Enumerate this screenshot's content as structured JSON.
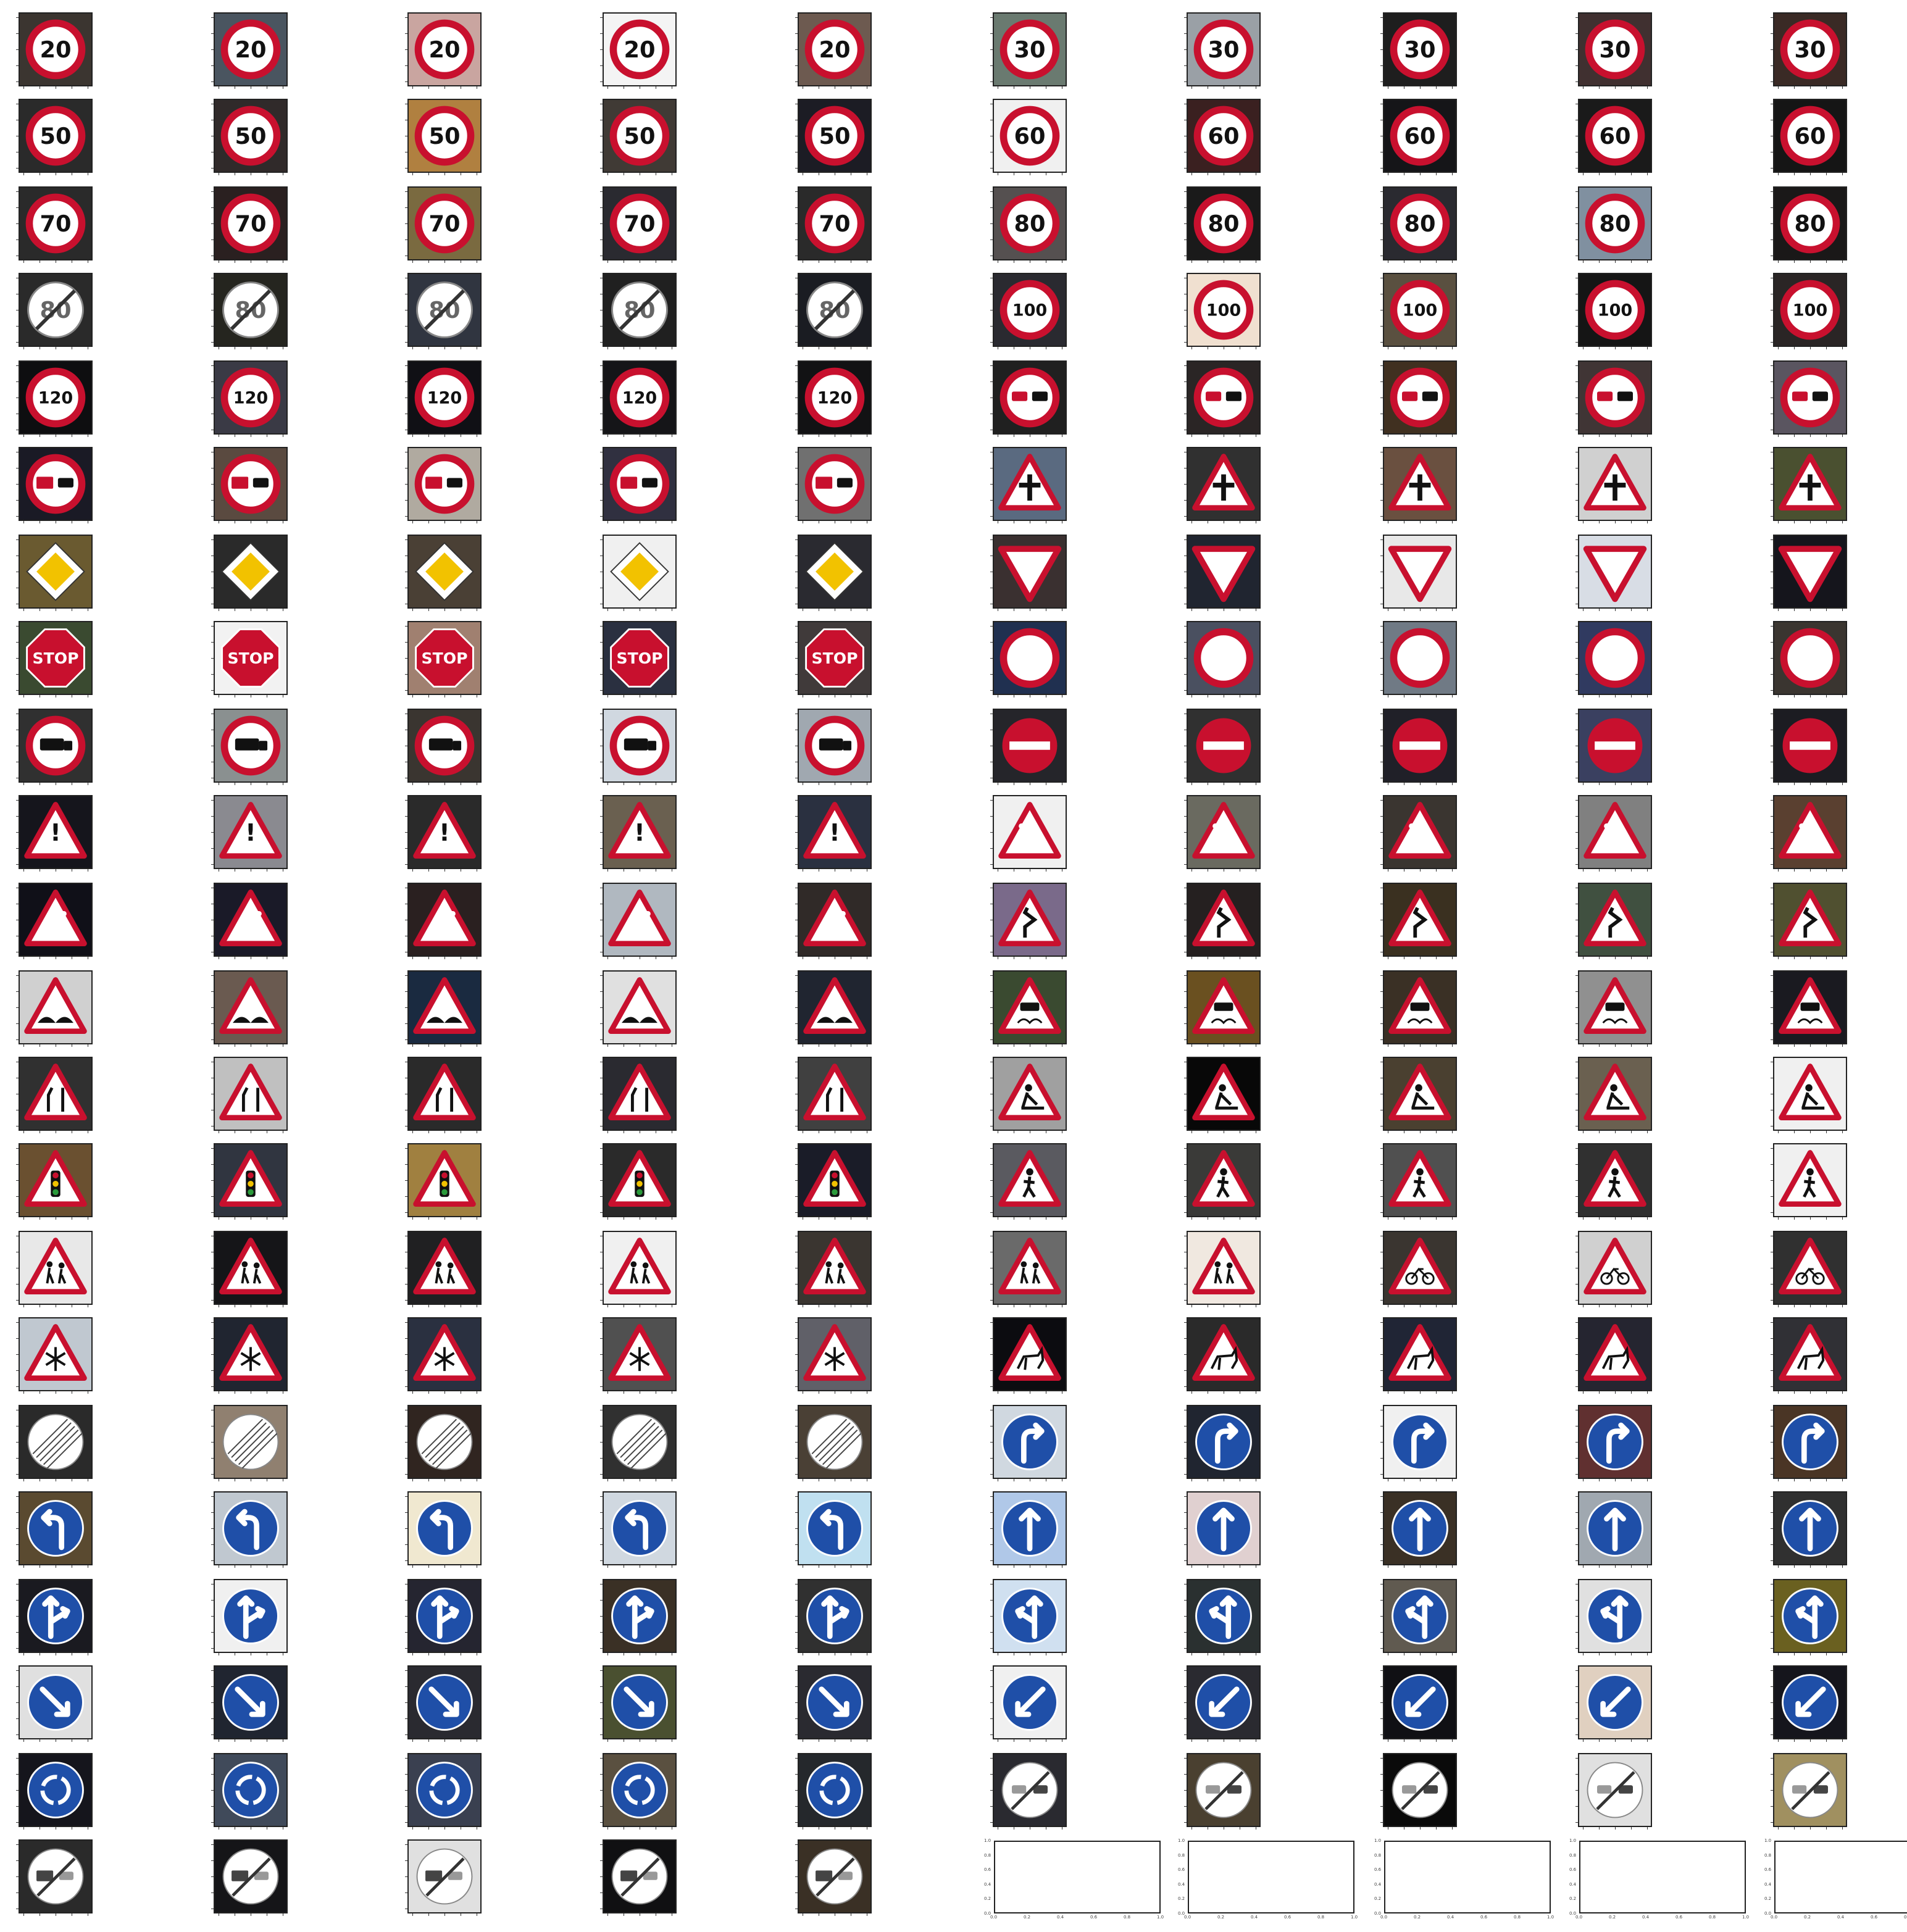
{
  "figure": {
    "background": "#ffffff",
    "rows": 22,
    "cols": 10
  },
  "tiles": [
    {
      "sign": "speed-20",
      "bg": "#3b3530",
      "text": "20"
    },
    {
      "sign": "speed-20",
      "bg": "#4a5560",
      "text": "20"
    },
    {
      "sign": "speed-20",
      "bg": "#c9a5a0",
      "text": "20"
    },
    {
      "sign": "speed-20",
      "bg": "#f4f4f4",
      "text": "20"
    },
    {
      "sign": "speed-20",
      "bg": "#6d5a50",
      "text": "20"
    },
    {
      "sign": "speed-30",
      "bg": "#6a7a70",
      "text": "30"
    },
    {
      "sign": "speed-30",
      "bg": "#9aa0a6",
      "text": "30"
    },
    {
      "sign": "speed-30",
      "bg": "#1e1e1e",
      "text": "30"
    },
    {
      "sign": "speed-30",
      "bg": "#403030",
      "text": "30"
    },
    {
      "sign": "speed-30",
      "bg": "#3a2a25",
      "text": "30"
    },
    {
      "sign": "speed-50",
      "bg": "#2a2a2a",
      "text": "50"
    },
    {
      "sign": "speed-50",
      "bg": "#302a2a",
      "text": "50"
    },
    {
      "sign": "speed-50",
      "bg": "#b08040",
      "text": "50"
    },
    {
      "sign": "speed-50",
      "bg": "#403a35",
      "text": "50"
    },
    {
      "sign": "speed-50",
      "bg": "#1c1c24",
      "text": "50"
    },
    {
      "sign": "speed-60",
      "bg": "#f0f0f0",
      "text": "60"
    },
    {
      "sign": "speed-60",
      "bg": "#3a2020",
      "text": "60"
    },
    {
      "sign": "speed-60",
      "bg": "#151518",
      "text": "60"
    },
    {
      "sign": "speed-60",
      "bg": "#1a1a1a",
      "text": "60"
    },
    {
      "sign": "speed-60",
      "bg": "#151515",
      "text": "60"
    },
    {
      "sign": "speed-70",
      "bg": "#2a2a2a",
      "text": "70"
    },
    {
      "sign": "speed-70",
      "bg": "#2a2020",
      "text": "70"
    },
    {
      "sign": "speed-70",
      "bg": "#7a6a40",
      "text": "70"
    },
    {
      "sign": "speed-70",
      "bg": "#2a2a30",
      "text": "70"
    },
    {
      "sign": "speed-70",
      "bg": "#2a2a2a",
      "text": "70"
    },
    {
      "sign": "speed-80",
      "bg": "#555050",
      "text": "80"
    },
    {
      "sign": "speed-80",
      "bg": "#1a1a1a",
      "text": "80"
    },
    {
      "sign": "speed-80",
      "bg": "#2a2a30",
      "text": "80"
    },
    {
      "sign": "speed-80",
      "bg": "#8090a0",
      "text": "80"
    },
    {
      "sign": "speed-80",
      "bg": "#1a1818",
      "text": "80"
    },
    {
      "sign": "end-80",
      "bg": "#2a2a2a",
      "text": "80"
    },
    {
      "sign": "end-80",
      "bg": "#25251f",
      "text": "80"
    },
    {
      "sign": "end-80",
      "bg": "#303540",
      "text": "80"
    },
    {
      "sign": "end-80",
      "bg": "#202020",
      "text": "80"
    },
    {
      "sign": "end-80",
      "bg": "#1a1c22",
      "text": "80"
    },
    {
      "sign": "speed-100",
      "bg": "#2a2a30",
      "text": "100"
    },
    {
      "sign": "speed-100",
      "bg": "#f0e0d0",
      "text": "100"
    },
    {
      "sign": "speed-100",
      "bg": "#5a5040",
      "text": "100"
    },
    {
      "sign": "speed-100",
      "bg": "#151515",
      "text": "100"
    },
    {
      "sign": "speed-100",
      "bg": "#2a2525",
      "text": "100"
    },
    {
      "sign": "speed-120",
      "bg": "#0e0e10",
      "text": "120"
    },
    {
      "sign": "speed-120",
      "bg": "#3a3a45",
      "text": "120"
    },
    {
      "sign": "speed-120",
      "bg": "#101015",
      "text": "120"
    },
    {
      "sign": "speed-120",
      "bg": "#151518",
      "text": "120"
    },
    {
      "sign": "speed-120",
      "bg": "#121214",
      "text": "120"
    },
    {
      "sign": "no-overtaking",
      "bg": "#202020",
      "text": ""
    },
    {
      "sign": "no-overtaking",
      "bg": "#2a2525",
      "text": ""
    },
    {
      "sign": "no-overtaking",
      "bg": "#403020",
      "text": ""
    },
    {
      "sign": "no-overtaking",
      "bg": "#403535",
      "text": ""
    },
    {
      "sign": "no-overtaking",
      "bg": "#5a5560",
      "text": ""
    },
    {
      "sign": "no-overtaking-truck",
      "bg": "#1a1a25",
      "text": ""
    },
    {
      "sign": "no-overtaking-truck",
      "bg": "#5a4a40",
      "text": ""
    },
    {
      "sign": "no-overtaking-truck",
      "bg": "#b0aaa0",
      "text": ""
    },
    {
      "sign": "no-overtaking-truck",
      "bg": "#303040",
      "text": ""
    },
    {
      "sign": "no-overtaking-truck",
      "bg": "#707070",
      "text": ""
    },
    {
      "sign": "priority-crossing",
      "bg": "#5a6a80",
      "text": ""
    },
    {
      "sign": "priority-crossing",
      "bg": "#303030",
      "text": ""
    },
    {
      "sign": "priority-crossing",
      "bg": "#6a5040",
      "text": ""
    },
    {
      "sign": "priority-crossing",
      "bg": "#d0d0d0",
      "text": ""
    },
    {
      "sign": "priority-crossing",
      "bg": "#4a5030",
      "text": ""
    },
    {
      "sign": "priority-road",
      "bg": "#6a5a30",
      "text": ""
    },
    {
      "sign": "priority-road",
      "bg": "#2a2a2a",
      "text": ""
    },
    {
      "sign": "priority-road",
      "bg": "#4a4035",
      "text": ""
    },
    {
      "sign": "priority-road",
      "bg": "#f0f0f0",
      "text": ""
    },
    {
      "sign": "priority-road",
      "bg": "#2a2a30",
      "text": ""
    },
    {
      "sign": "yield",
      "bg": "#3a3030",
      "text": ""
    },
    {
      "sign": "yield",
      "bg": "#202530",
      "text": ""
    },
    {
      "sign": "yield",
      "bg": "#e8e8e8",
      "text": ""
    },
    {
      "sign": "yield",
      "bg": "#d8dde5",
      "text": ""
    },
    {
      "sign": "yield",
      "bg": "#15151c",
      "text": ""
    },
    {
      "sign": "stop",
      "bg": "#3a4a30",
      "text": "STOP"
    },
    {
      "sign": "stop",
      "bg": "#f2f2f2",
      "text": "STOP"
    },
    {
      "sign": "stop",
      "bg": "#a08070",
      "text": "STOP"
    },
    {
      "sign": "stop",
      "bg": "#2a3040",
      "text": "STOP"
    },
    {
      "sign": "stop",
      "bg": "#403a3a",
      "text": "STOP"
    },
    {
      "sign": "no-vehicles",
      "bg": "#203050",
      "text": ""
    },
    {
      "sign": "no-vehicles",
      "bg": "#4a5060",
      "text": ""
    },
    {
      "sign": "no-vehicles",
      "bg": "#707a85",
      "text": ""
    },
    {
      "sign": "no-vehicles",
      "bg": "#303a60",
      "text": ""
    },
    {
      "sign": "no-vehicles",
      "bg": "#3a3530",
      "text": ""
    },
    {
      "sign": "no-trucks",
      "bg": "#303030",
      "text": ""
    },
    {
      "sign": "no-trucks",
      "bg": "#8a9090",
      "text": ""
    },
    {
      "sign": "no-trucks",
      "bg": "#3a3530",
      "text": ""
    },
    {
      "sign": "no-trucks",
      "bg": "#d0d8e0",
      "text": ""
    },
    {
      "sign": "no-trucks",
      "bg": "#a0a8b0",
      "text": ""
    },
    {
      "sign": "no-entry",
      "bg": "#25252a",
      "text": ""
    },
    {
      "sign": "no-entry",
      "bg": "#303030",
      "text": ""
    },
    {
      "sign": "no-entry",
      "bg": "#202028",
      "text": ""
    },
    {
      "sign": "no-entry",
      "bg": "#3a4060",
      "text": ""
    },
    {
      "sign": "no-entry",
      "bg": "#1c1c22",
      "text": ""
    },
    {
      "sign": "caution",
      "bg": "#15151c",
      "text": "!"
    },
    {
      "sign": "caution",
      "bg": "#8a8a90",
      "text": "!"
    },
    {
      "sign": "caution",
      "bg": "#2a2a2a",
      "text": "!"
    },
    {
      "sign": "caution",
      "bg": "#6a6050",
      "text": "!"
    },
    {
      "sign": "caution",
      "bg": "#2a3040",
      "text": "!"
    },
    {
      "sign": "curve-left",
      "bg": "#f0f0f0",
      "text": ""
    },
    {
      "sign": "curve-left",
      "bg": "#6a6a60",
      "text": ""
    },
    {
      "sign": "curve-left",
      "bg": "#3a3530",
      "text": ""
    },
    {
      "sign": "curve-left",
      "bg": "#808080",
      "text": ""
    },
    {
      "sign": "curve-left",
      "bg": "#5a4030",
      "text": ""
    },
    {
      "sign": "curve-right",
      "bg": "#101018",
      "text": ""
    },
    {
      "sign": "curve-right",
      "bg": "#1a1a28",
      "text": ""
    },
    {
      "sign": "curve-right",
      "bg": "#2a2020",
      "text": ""
    },
    {
      "sign": "curve-right",
      "bg": "#b0b8c0",
      "text": ""
    },
    {
      "sign": "curve-right",
      "bg": "#302a28",
      "text": ""
    },
    {
      "sign": "double-curve",
      "bg": "#7a6a8a",
      "text": ""
    },
    {
      "sign": "double-curve",
      "bg": "#252020",
      "text": ""
    },
    {
      "sign": "double-curve",
      "bg": "#3a3020",
      "text": ""
    },
    {
      "sign": "double-curve",
      "bg": "#405040",
      "text": ""
    },
    {
      "sign": "double-curve",
      "bg": "#505030",
      "text": ""
    },
    {
      "sign": "bumpy-road",
      "bg": "#d0d0d0",
      "text": ""
    },
    {
      "sign": "bumpy-road",
      "bg": "#6a5a50",
      "text": ""
    },
    {
      "sign": "bumpy-road",
      "bg": "#1a2a40",
      "text": ""
    },
    {
      "sign": "bumpy-road",
      "bg": "#e0e0e0",
      "text": ""
    },
    {
      "sign": "bumpy-road",
      "bg": "#202530",
      "text": ""
    },
    {
      "sign": "slippery-road",
      "bg": "#3a4a30",
      "text": ""
    },
    {
      "sign": "slippery-road",
      "bg": "#6a5020",
      "text": ""
    },
    {
      "sign": "slippery-road",
      "bg": "#3a3025",
      "text": ""
    },
    {
      "sign": "slippery-road",
      "bg": "#909090",
      "text": ""
    },
    {
      "sign": "slippery-road",
      "bg": "#1a1a20",
      "text": ""
    },
    {
      "sign": "road-narrows",
      "bg": "#303030",
      "text": ""
    },
    {
      "sign": "road-narrows",
      "bg": "#c0c0c0",
      "text": ""
    },
    {
      "sign": "road-narrows",
      "bg": "#2a2a2a",
      "text": ""
    },
    {
      "sign": "road-narrows",
      "bg": "#2a2a30",
      "text": ""
    },
    {
      "sign": "road-narrows",
      "bg": "#404040",
      "text": ""
    },
    {
      "sign": "road-work",
      "bg": "#a0a0a0",
      "text": ""
    },
    {
      "sign": "road-work",
      "bg": "#080808",
      "text": ""
    },
    {
      "sign": "road-work",
      "bg": "#4a4030",
      "text": ""
    },
    {
      "sign": "road-work",
      "bg": "#6a6050",
      "text": ""
    },
    {
      "sign": "road-work",
      "bg": "#f0f0f0",
      "text": ""
    },
    {
      "sign": "traffic-signals",
      "bg": "#6a5030",
      "text": ""
    },
    {
      "sign": "traffic-signals",
      "bg": "#303540",
      "text": ""
    },
    {
      "sign": "traffic-signals",
      "bg": "#a08040",
      "text": ""
    },
    {
      "sign": "traffic-signals",
      "bg": "#2a2a2a",
      "text": ""
    },
    {
      "sign": "traffic-signals",
      "bg": "#1a1c28",
      "text": ""
    },
    {
      "sign": "pedestrians",
      "bg": "#5a5a60",
      "text": ""
    },
    {
      "sign": "pedestrians",
      "bg": "#3a3a38",
      "text": ""
    },
    {
      "sign": "pedestrians",
      "bg": "#505050",
      "text": ""
    },
    {
      "sign": "pedestrians",
      "bg": "#303030",
      "text": ""
    },
    {
      "sign": "pedestrians",
      "bg": "#f0f0f0",
      "text": ""
    },
    {
      "sign": "children-crossing",
      "bg": "#e8e8e8",
      "text": ""
    },
    {
      "sign": "children-crossing",
      "bg": "#151518",
      "text": ""
    },
    {
      "sign": "children-crossing",
      "bg": "#202022",
      "text": ""
    },
    {
      "sign": "children-crossing",
      "bg": "#f0f0f0",
      "text": ""
    },
    {
      "sign": "children-crossing",
      "bg": "#3a3530",
      "text": ""
    },
    {
      "sign": "children-crossing",
      "bg": "#6a6a6a",
      "text": ""
    },
    {
      "sign": "children-crossing",
      "bg": "#f0e8e0",
      "text": ""
    },
    {
      "sign": "bicycles-crossing",
      "bg": "#3a3530",
      "text": ""
    },
    {
      "sign": "bicycles-crossing",
      "bg": "#d0d0d0",
      "text": ""
    },
    {
      "sign": "bicycles-crossing",
      "bg": "#303030",
      "text": ""
    },
    {
      "sign": "snow-ice",
      "bg": "#c0c8d0",
      "text": ""
    },
    {
      "sign": "snow-ice",
      "bg": "#202530",
      "text": ""
    },
    {
      "sign": "snow-ice",
      "bg": "#2a3040",
      "text": ""
    },
    {
      "sign": "snow-ice",
      "bg": "#505050",
      "text": ""
    },
    {
      "sign": "snow-ice",
      "bg": "#606068",
      "text": ""
    },
    {
      "sign": "wild-animals",
      "bg": "#0c0c10",
      "text": ""
    },
    {
      "sign": "wild-animals",
      "bg": "#2a2a2a",
      "text": ""
    },
    {
      "sign": "wild-animals",
      "bg": "#202535",
      "text": ""
    },
    {
      "sign": "wild-animals",
      "bg": "#252530",
      "text": ""
    },
    {
      "sign": "wild-animals",
      "bg": "#303035",
      "text": ""
    },
    {
      "sign": "end-limits",
      "bg": "#2a2a2a",
      "text": ""
    },
    {
      "sign": "end-limits",
      "bg": "#908070",
      "text": ""
    },
    {
      "sign": "end-limits",
      "bg": "#302520",
      "text": ""
    },
    {
      "sign": "end-limits",
      "bg": "#303030",
      "text": ""
    },
    {
      "sign": "end-limits",
      "bg": "#4a4035",
      "text": ""
    },
    {
      "sign": "turn-right",
      "bg": "#d0d8e0",
      "text": ""
    },
    {
      "sign": "turn-right",
      "bg": "#202530",
      "text": ""
    },
    {
      "sign": "turn-right",
      "bg": "#f0f0f0",
      "text": ""
    },
    {
      "sign": "turn-right",
      "bg": "#603030",
      "text": ""
    },
    {
      "sign": "turn-right",
      "bg": "#4a3525",
      "text": ""
    },
    {
      "sign": "turn-left",
      "bg": "#5a4a30",
      "text": ""
    },
    {
      "sign": "turn-left",
      "bg": "#c0c8d0",
      "text": ""
    },
    {
      "sign": "turn-left",
      "bg": "#f0e8d0",
      "text": ""
    },
    {
      "sign": "turn-left",
      "bg": "#d0d8e0",
      "text": ""
    },
    {
      "sign": "turn-left",
      "bg": "#c0e0f0",
      "text": ""
    },
    {
      "sign": "ahead-only",
      "bg": "#b0c8e8",
      "text": ""
    },
    {
      "sign": "ahead-only",
      "bg": "#e0d0d0",
      "text": ""
    },
    {
      "sign": "ahead-only",
      "bg": "#3a3025",
      "text": ""
    },
    {
      "sign": "ahead-only",
      "bg": "#a0a8b0",
      "text": ""
    },
    {
      "sign": "ahead-only",
      "bg": "#303030",
      "text": ""
    },
    {
      "sign": "straight-right",
      "bg": "#1a1a20",
      "text": ""
    },
    {
      "sign": "straight-right",
      "bg": "#f0f0f0",
      "text": ""
    },
    {
      "sign": "straight-right",
      "bg": "#252530",
      "text": ""
    },
    {
      "sign": "straight-right",
      "bg": "#3a3025",
      "text": ""
    },
    {
      "sign": "straight-right",
      "bg": "#303030",
      "text": ""
    },
    {
      "sign": "straight-left",
      "bg": "#d0e0f0",
      "text": ""
    },
    {
      "sign": "straight-left",
      "bg": "#2a3030",
      "text": ""
    },
    {
      "sign": "straight-left",
      "bg": "#605a50",
      "text": ""
    },
    {
      "sign": "straight-left",
      "bg": "#e0e0e0",
      "text": ""
    },
    {
      "sign": "straight-left",
      "bg": "#6a6020",
      "text": ""
    },
    {
      "sign": "keep-right",
      "bg": "#e0e0e0",
      "text": ""
    },
    {
      "sign": "keep-right",
      "bg": "#202530",
      "text": ""
    },
    {
      "sign": "keep-right",
      "bg": "#2a2a30",
      "text": ""
    },
    {
      "sign": "keep-right",
      "bg": "#4a5030",
      "text": ""
    },
    {
      "sign": "keep-right",
      "bg": "#2a2a30",
      "text": ""
    },
    {
      "sign": "keep-left",
      "bg": "#f0f0f0",
      "text": ""
    },
    {
      "sign": "keep-left",
      "bg": "#2a2a30",
      "text": ""
    },
    {
      "sign": "keep-left",
      "bg": "#101014",
      "text": ""
    },
    {
      "sign": "keep-left",
      "bg": "#e0d0c0",
      "text": ""
    },
    {
      "sign": "keep-left",
      "bg": "#15151c",
      "text": ""
    },
    {
      "sign": "roundabout",
      "bg": "#15151c",
      "text": ""
    },
    {
      "sign": "roundabout",
      "bg": "#404a5a",
      "text": ""
    },
    {
      "sign": "roundabout",
      "bg": "#3a4050",
      "text": ""
    },
    {
      "sign": "roundabout",
      "bg": "#5a5040",
      "text": ""
    },
    {
      "sign": "roundabout",
      "bg": "#25282c",
      "text": ""
    },
    {
      "sign": "end-no-overtaking",
      "bg": "#2a2a30",
      "text": ""
    },
    {
      "sign": "end-no-overtaking",
      "bg": "#4a4030",
      "text": ""
    },
    {
      "sign": "end-no-overtaking",
      "bg": "#0a0a0a",
      "text": ""
    },
    {
      "sign": "end-no-overtaking",
      "bg": "#e0e0e0",
      "text": ""
    },
    {
      "sign": "end-no-overtaking",
      "bg": "#a09060",
      "text": ""
    },
    {
      "sign": "end-no-overtaking-truck",
      "bg": "#2a2a2a",
      "text": ""
    },
    {
      "sign": "end-no-overtaking-truck",
      "bg": "#151518",
      "text": ""
    },
    {
      "sign": "end-no-overtaking-truck",
      "bg": "#e0e0e0",
      "text": ""
    },
    {
      "sign": "end-no-overtaking-truck",
      "bg": "#101012",
      "text": ""
    },
    {
      "sign": "end-no-overtaking-truck",
      "bg": "#3a3025",
      "text": ""
    },
    {
      "sign": "empty",
      "bg": "#ffffff",
      "text": ""
    },
    {
      "sign": "empty",
      "bg": "#ffffff",
      "text": ""
    },
    {
      "sign": "empty",
      "bg": "#ffffff",
      "text": ""
    },
    {
      "sign": "empty",
      "bg": "#ffffff",
      "text": ""
    },
    {
      "sign": "empty",
      "bg": "#ffffff",
      "text": ""
    }
  ],
  "empty_axes": {
    "xticks": [
      "0.0",
      "0.2",
      "0.4",
      "0.6",
      "0.8",
      "1.0"
    ],
    "yticks": [
      "0.0",
      "0.2",
      "0.4",
      "0.6",
      "0.8",
      "1.0"
    ]
  },
  "colors": {
    "red": "#c8102e",
    "blue": "#1f4fa8",
    "white": "#ffffff",
    "black": "#111111",
    "yellow": "#f2c200"
  }
}
